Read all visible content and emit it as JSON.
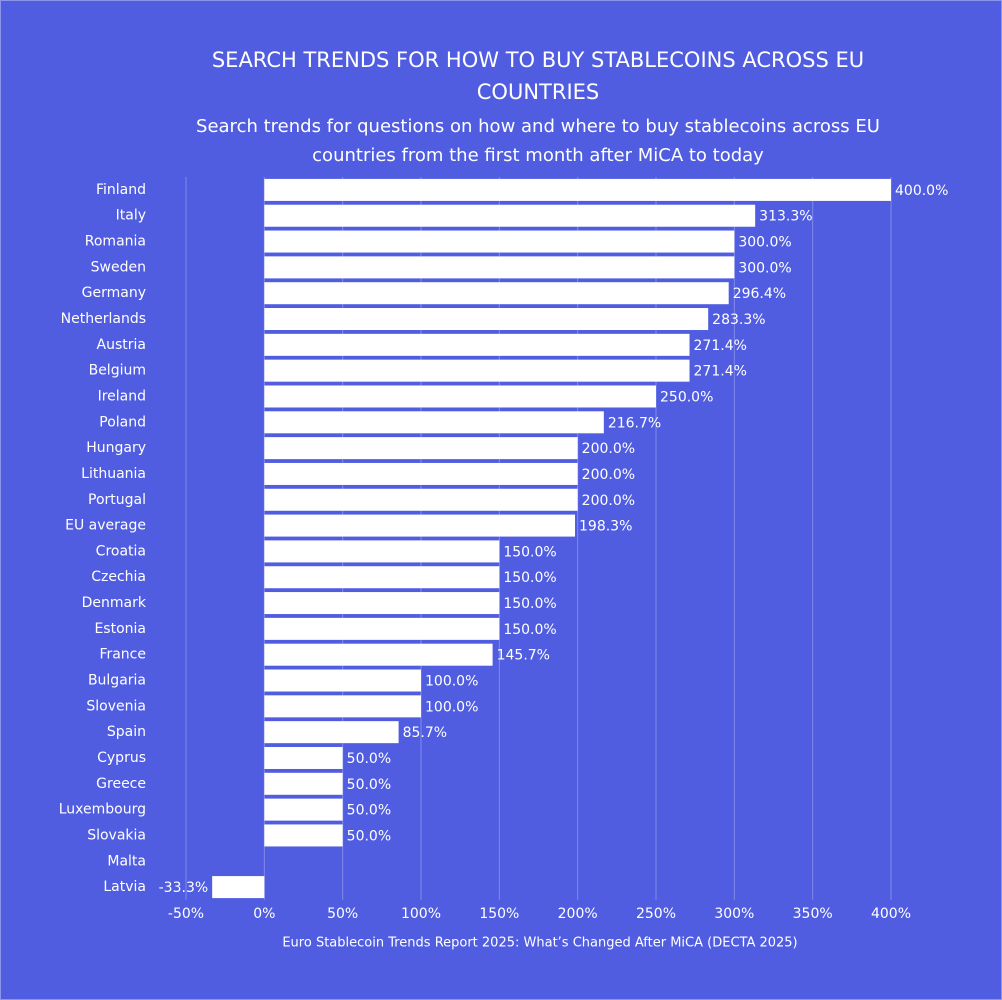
{
  "chart_data": {
    "type": "bar",
    "orientation": "horizontal",
    "title": "SEARCH TRENDS FOR HOW TO BUY STABLECOINS ACROSS EU COUNTRIES",
    "subtitle": "Search trends for questions on how and where to buy stablecoins across EU countries from the first month after MiCA to today",
    "source": "Euro Stablecoin Trends Report 2025: What’s Changed After MiCA (DECTA 2025)",
    "categories": [
      "Finland",
      "Italy",
      "Romania",
      "Sweden",
      "Germany",
      "Netherlands",
      "Austria",
      "Belgium",
      "Ireland",
      "Poland",
      "Hungary",
      "Lithuania",
      "Portugal",
      "EU average",
      "Croatia",
      "Czechia",
      "Denmark",
      "Estonia",
      "France",
      "Bulgaria",
      "Slovenia",
      "Spain",
      "Cyprus",
      "Greece",
      "Luxembourg",
      "Slovakia",
      "Malta",
      "Latvia"
    ],
    "values": [
      400.0,
      313.3,
      300.0,
      300.0,
      296.4,
      283.3,
      271.4,
      271.4,
      250.0,
      216.7,
      200.0,
      200.0,
      200.0,
      198.3,
      150.0,
      150.0,
      150.0,
      150.0,
      145.7,
      100.0,
      100.0,
      85.7,
      50.0,
      50.0,
      50.0,
      50.0,
      null,
      -33.3
    ],
    "value_labels": [
      "400.0%",
      "313.3%",
      "300.0%",
      "300.0%",
      "296.4%",
      "283.3%",
      "271.4%",
      "271.4%",
      "250.0%",
      "216.7%",
      "200.0%",
      "200.0%",
      "200.0%",
      "198.3%",
      "150.0%",
      "150.0%",
      "150.0%",
      "150.0%",
      "145.7%",
      "100.0%",
      "100.0%",
      "85.7%",
      "50.0%",
      "50.0%",
      "50.0%",
      "50.0%",
      null,
      "-33.3%"
    ],
    "color": "#ffffff",
    "xlim": [
      -50,
      400
    ],
    "xticks": [
      {
        "value": -50,
        "label": "-50%"
      },
      {
        "value": 0,
        "label": "0%"
      },
      {
        "value": 50,
        "label": "50%"
      },
      {
        "value": 100,
        "label": "100%"
      },
      {
        "value": 150,
        "label": "150%"
      },
      {
        "value": 200,
        "label": "200%"
      },
      {
        "value": 250,
        "label": "250%"
      },
      {
        "value": 300,
        "label": "300%"
      },
      {
        "value": 350,
        "label": "350%"
      },
      {
        "value": 400,
        "label": "400%"
      }
    ],
    "grid": true
  }
}
